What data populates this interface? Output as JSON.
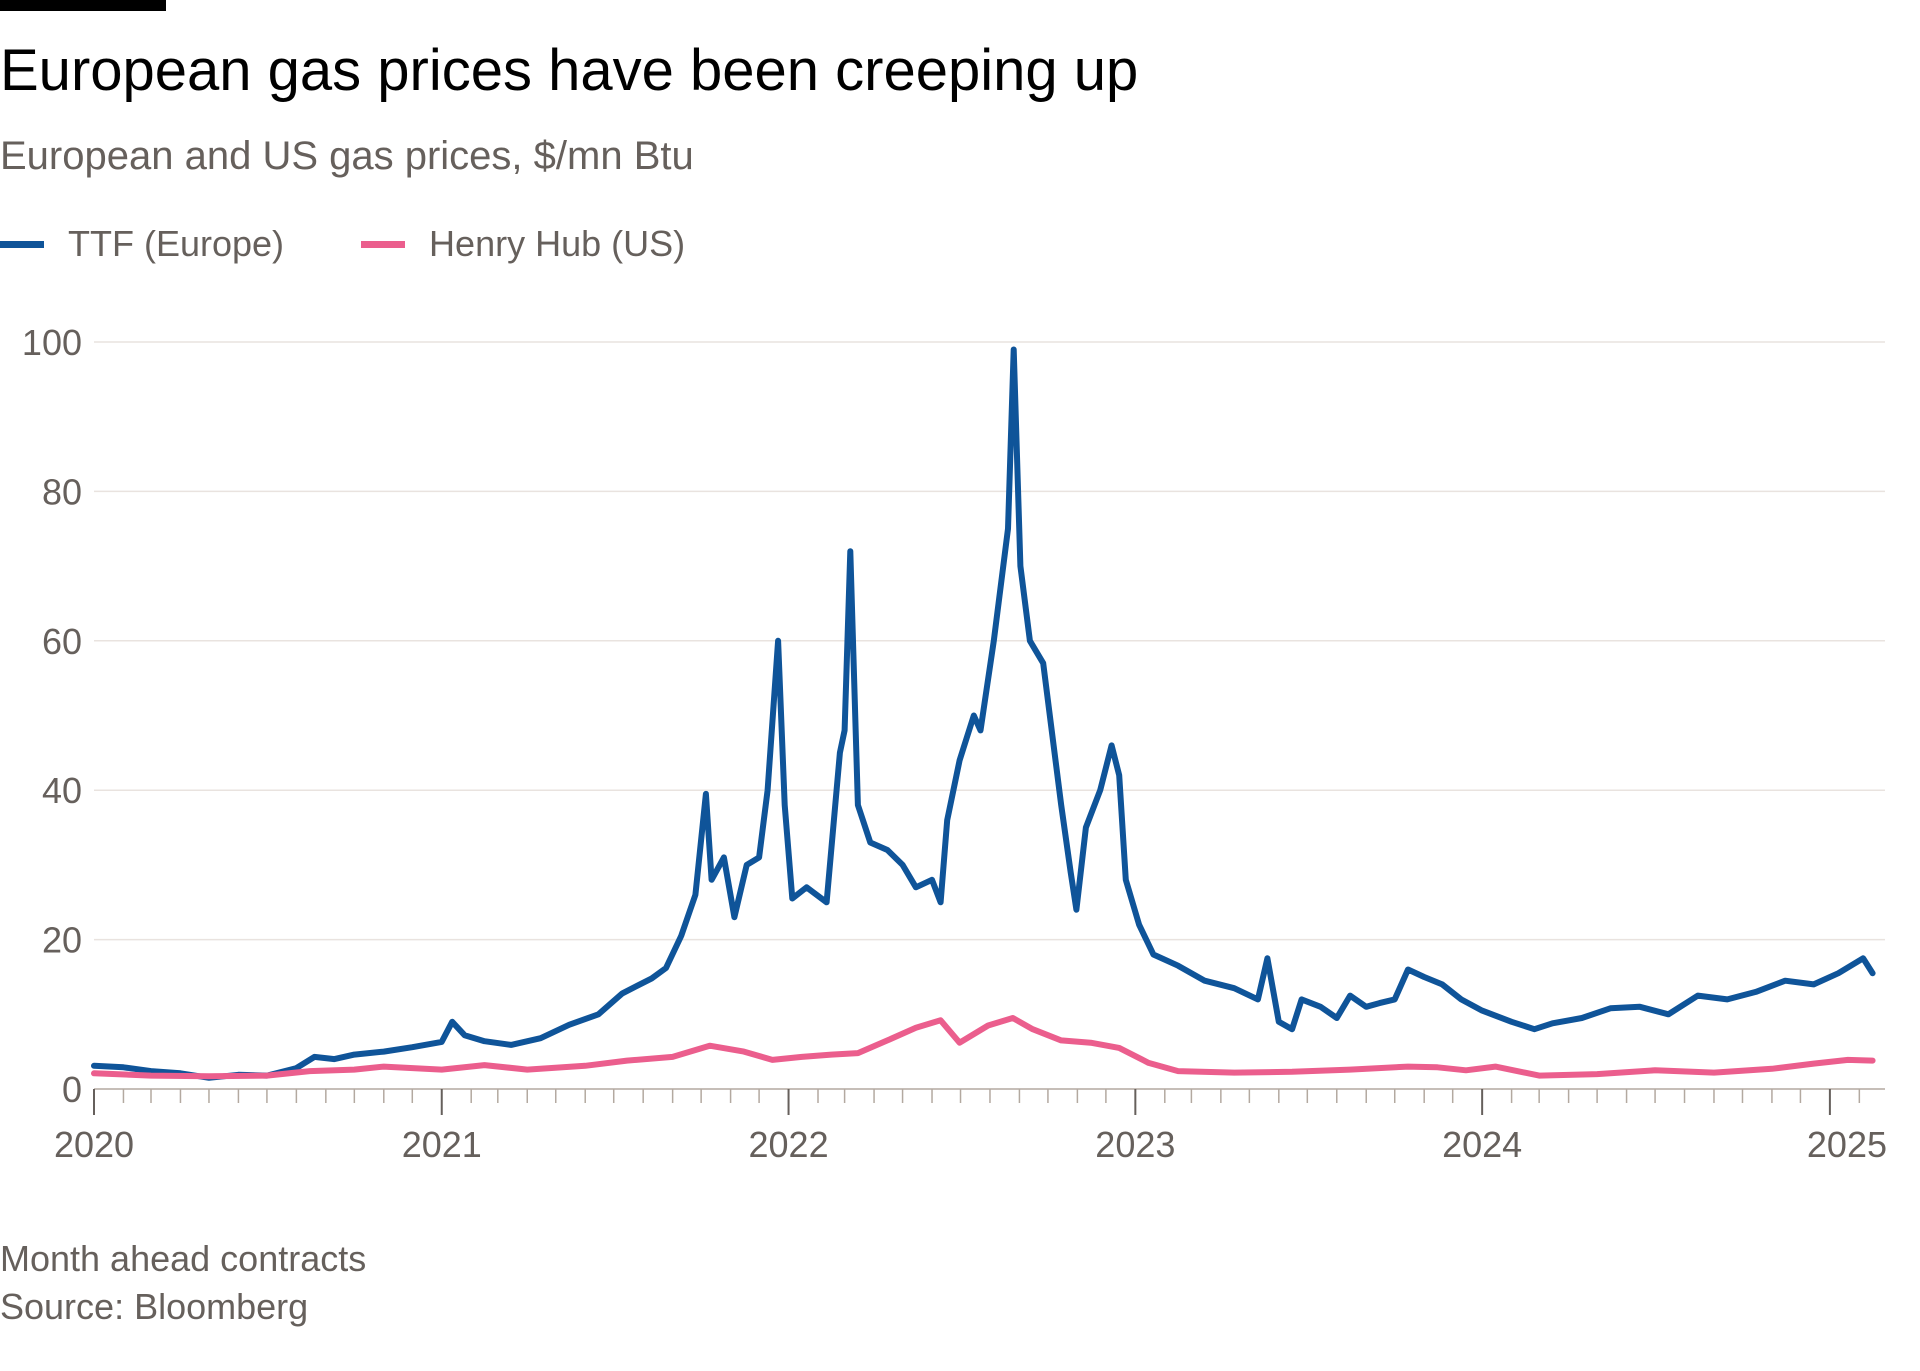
{
  "header": {
    "title": "European gas prices have been creeping up",
    "subtitle": "European and US gas prices, $/mn Btu"
  },
  "footer": {
    "note": "Month ahead contracts",
    "source": "Source: Bloomberg"
  },
  "colors": {
    "ttf": "#0f5499",
    "henry_hub": "#eb5e8d",
    "grid": "#e9e3df",
    "text": "#66605c"
  },
  "chart_data": {
    "type": "line",
    "xlabel": "",
    "ylabel": "",
    "x_range": [
      "2020-01-01",
      "2025-02-28"
    ],
    "ylim": [
      0,
      100
    ],
    "y_ticks": [
      0,
      20,
      40,
      60,
      80,
      100
    ],
    "x_ticks": [
      "2020",
      "2021",
      "2022",
      "2023",
      "2024",
      "2025"
    ],
    "grid": true,
    "legend": "top-left",
    "series": [
      {
        "name": "TTF (Europe)",
        "color": "#0f5499",
        "points": [
          [
            "2020-01-01",
            3.1
          ],
          [
            "2020-02-01",
            2.9
          ],
          [
            "2020-03-01",
            2.4
          ],
          [
            "2020-04-01",
            2.1
          ],
          [
            "2020-05-01",
            1.5
          ],
          [
            "2020-06-01",
            1.9
          ],
          [
            "2020-07-01",
            1.8
          ],
          [
            "2020-08-01",
            2.8
          ],
          [
            "2020-08-20",
            4.3
          ],
          [
            "2020-09-10",
            4.0
          ],
          [
            "2020-10-01",
            4.6
          ],
          [
            "2020-11-01",
            5.0
          ],
          [
            "2020-12-01",
            5.6
          ],
          [
            "2021-01-01",
            6.3
          ],
          [
            "2021-01-12",
            9.0
          ],
          [
            "2021-01-25",
            7.2
          ],
          [
            "2021-02-15",
            6.4
          ],
          [
            "2021-03-15",
            5.9
          ],
          [
            "2021-04-15",
            6.8
          ],
          [
            "2021-05-15",
            8.6
          ],
          [
            "2021-06-15",
            10.0
          ],
          [
            "2021-07-10",
            12.8
          ],
          [
            "2021-08-10",
            14.8
          ],
          [
            "2021-08-25",
            16.2
          ],
          [
            "2021-09-10",
            20.5
          ],
          [
            "2021-09-25",
            26.0
          ],
          [
            "2021-10-06",
            39.5
          ],
          [
            "2021-10-12",
            28.0
          ],
          [
            "2021-10-25",
            31.0
          ],
          [
            "2021-11-05",
            23.0
          ],
          [
            "2021-11-18",
            30.0
          ],
          [
            "2021-12-01",
            31.0
          ],
          [
            "2021-12-10",
            40.0
          ],
          [
            "2021-12-21",
            60.0
          ],
          [
            "2021-12-28",
            38.0
          ],
          [
            "2022-01-05",
            25.5
          ],
          [
            "2022-01-20",
            27.0
          ],
          [
            "2022-02-10",
            25.0
          ],
          [
            "2022-02-24",
            45.0
          ],
          [
            "2022-03-01",
            48.0
          ],
          [
            "2022-03-07",
            72.0
          ],
          [
            "2022-03-15",
            38.0
          ],
          [
            "2022-03-28",
            33.0
          ],
          [
            "2022-04-15",
            32.0
          ],
          [
            "2022-05-01",
            30.0
          ],
          [
            "2022-05-15",
            27.0
          ],
          [
            "2022-06-01",
            28.0
          ],
          [
            "2022-06-10",
            25.0
          ],
          [
            "2022-06-17",
            36.0
          ],
          [
            "2022-06-30",
            44.0
          ],
          [
            "2022-07-15",
            50.0
          ],
          [
            "2022-07-22",
            48.0
          ],
          [
            "2022-08-05",
            60.0
          ],
          [
            "2022-08-20",
            75.0
          ],
          [
            "2022-08-26",
            99.0
          ],
          [
            "2022-09-02",
            70.0
          ],
          [
            "2022-09-12",
            60.0
          ],
          [
            "2022-09-26",
            57.0
          ],
          [
            "2022-10-05",
            48.0
          ],
          [
            "2022-10-15",
            38.0
          ],
          [
            "2022-10-25",
            29.0
          ],
          [
            "2022-10-31",
            24.0
          ],
          [
            "2022-11-10",
            35.0
          ],
          [
            "2022-11-25",
            40.0
          ],
          [
            "2022-12-07",
            46.0
          ],
          [
            "2022-12-15",
            42.0
          ],
          [
            "2022-12-22",
            28.0
          ],
          [
            "2023-01-05",
            22.0
          ],
          [
            "2023-01-20",
            18.0
          ],
          [
            "2023-02-15",
            16.5
          ],
          [
            "2023-03-15",
            14.5
          ],
          [
            "2023-04-15",
            13.5
          ],
          [
            "2023-05-10",
            12.0
          ],
          [
            "2023-05-20",
            17.5
          ],
          [
            "2023-06-01",
            9.0
          ],
          [
            "2023-06-15",
            8.0
          ],
          [
            "2023-06-25",
            12.0
          ],
          [
            "2023-07-15",
            11.0
          ],
          [
            "2023-08-01",
            9.5
          ],
          [
            "2023-08-15",
            12.5
          ],
          [
            "2023-09-01",
            11.0
          ],
          [
            "2023-09-15",
            11.5
          ],
          [
            "2023-10-01",
            12.0
          ],
          [
            "2023-10-15",
            16.0
          ],
          [
            "2023-11-01",
            15.0
          ],
          [
            "2023-11-20",
            14.0
          ],
          [
            "2023-12-10",
            12.0
          ],
          [
            "2024-01-01",
            10.5
          ],
          [
            "2024-02-01",
            9.0
          ],
          [
            "2024-02-25",
            8.0
          ],
          [
            "2024-03-15",
            8.8
          ],
          [
            "2024-04-15",
            9.5
          ],
          [
            "2024-05-15",
            10.8
          ],
          [
            "2024-06-15",
            11.0
          ],
          [
            "2024-07-15",
            10.0
          ],
          [
            "2024-08-15",
            12.5
          ],
          [
            "2024-09-15",
            12.0
          ],
          [
            "2024-10-15",
            13.0
          ],
          [
            "2024-11-15",
            14.5
          ],
          [
            "2024-12-15",
            14.0
          ],
          [
            "2025-01-10",
            15.5
          ],
          [
            "2025-02-05",
            17.5
          ],
          [
            "2025-02-15",
            15.5
          ]
        ]
      },
      {
        "name": "Henry Hub (US)",
        "color": "#eb5e8d",
        "points": [
          [
            "2020-01-01",
            2.1
          ],
          [
            "2020-03-01",
            1.8
          ],
          [
            "2020-05-01",
            1.7
          ],
          [
            "2020-07-01",
            1.8
          ],
          [
            "2020-08-15",
            2.4
          ],
          [
            "2020-10-01",
            2.6
          ],
          [
            "2020-11-01",
            3.0
          ],
          [
            "2021-01-01",
            2.6
          ],
          [
            "2021-02-15",
            3.2
          ],
          [
            "2021-04-01",
            2.6
          ],
          [
            "2021-06-01",
            3.1
          ],
          [
            "2021-07-15",
            3.8
          ],
          [
            "2021-09-01",
            4.3
          ],
          [
            "2021-10-10",
            5.8
          ],
          [
            "2021-11-15",
            5.0
          ],
          [
            "2021-12-15",
            3.9
          ],
          [
            "2022-01-15",
            4.3
          ],
          [
            "2022-02-15",
            4.6
          ],
          [
            "2022-03-15",
            4.8
          ],
          [
            "2022-04-15",
            6.5
          ],
          [
            "2022-05-15",
            8.2
          ],
          [
            "2022-06-10",
            9.2
          ],
          [
            "2022-06-30",
            6.2
          ],
          [
            "2022-07-30",
            8.5
          ],
          [
            "2022-08-25",
            9.5
          ],
          [
            "2022-09-15",
            8.0
          ],
          [
            "2022-10-15",
            6.5
          ],
          [
            "2022-11-15",
            6.2
          ],
          [
            "2022-12-15",
            5.5
          ],
          [
            "2023-01-15",
            3.5
          ],
          [
            "2023-02-15",
            2.4
          ],
          [
            "2023-04-15",
            2.2
          ],
          [
            "2023-06-15",
            2.3
          ],
          [
            "2023-08-15",
            2.6
          ],
          [
            "2023-10-15",
            3.0
          ],
          [
            "2023-11-15",
            2.9
          ],
          [
            "2023-12-15",
            2.5
          ],
          [
            "2024-01-15",
            3.0
          ],
          [
            "2024-03-01",
            1.8
          ],
          [
            "2024-05-01",
            2.0
          ],
          [
            "2024-07-01",
            2.5
          ],
          [
            "2024-09-01",
            2.2
          ],
          [
            "2024-11-01",
            2.7
          ],
          [
            "2024-12-15",
            3.4
          ],
          [
            "2025-01-20",
            3.9
          ],
          [
            "2025-02-15",
            3.8
          ]
        ]
      }
    ]
  }
}
